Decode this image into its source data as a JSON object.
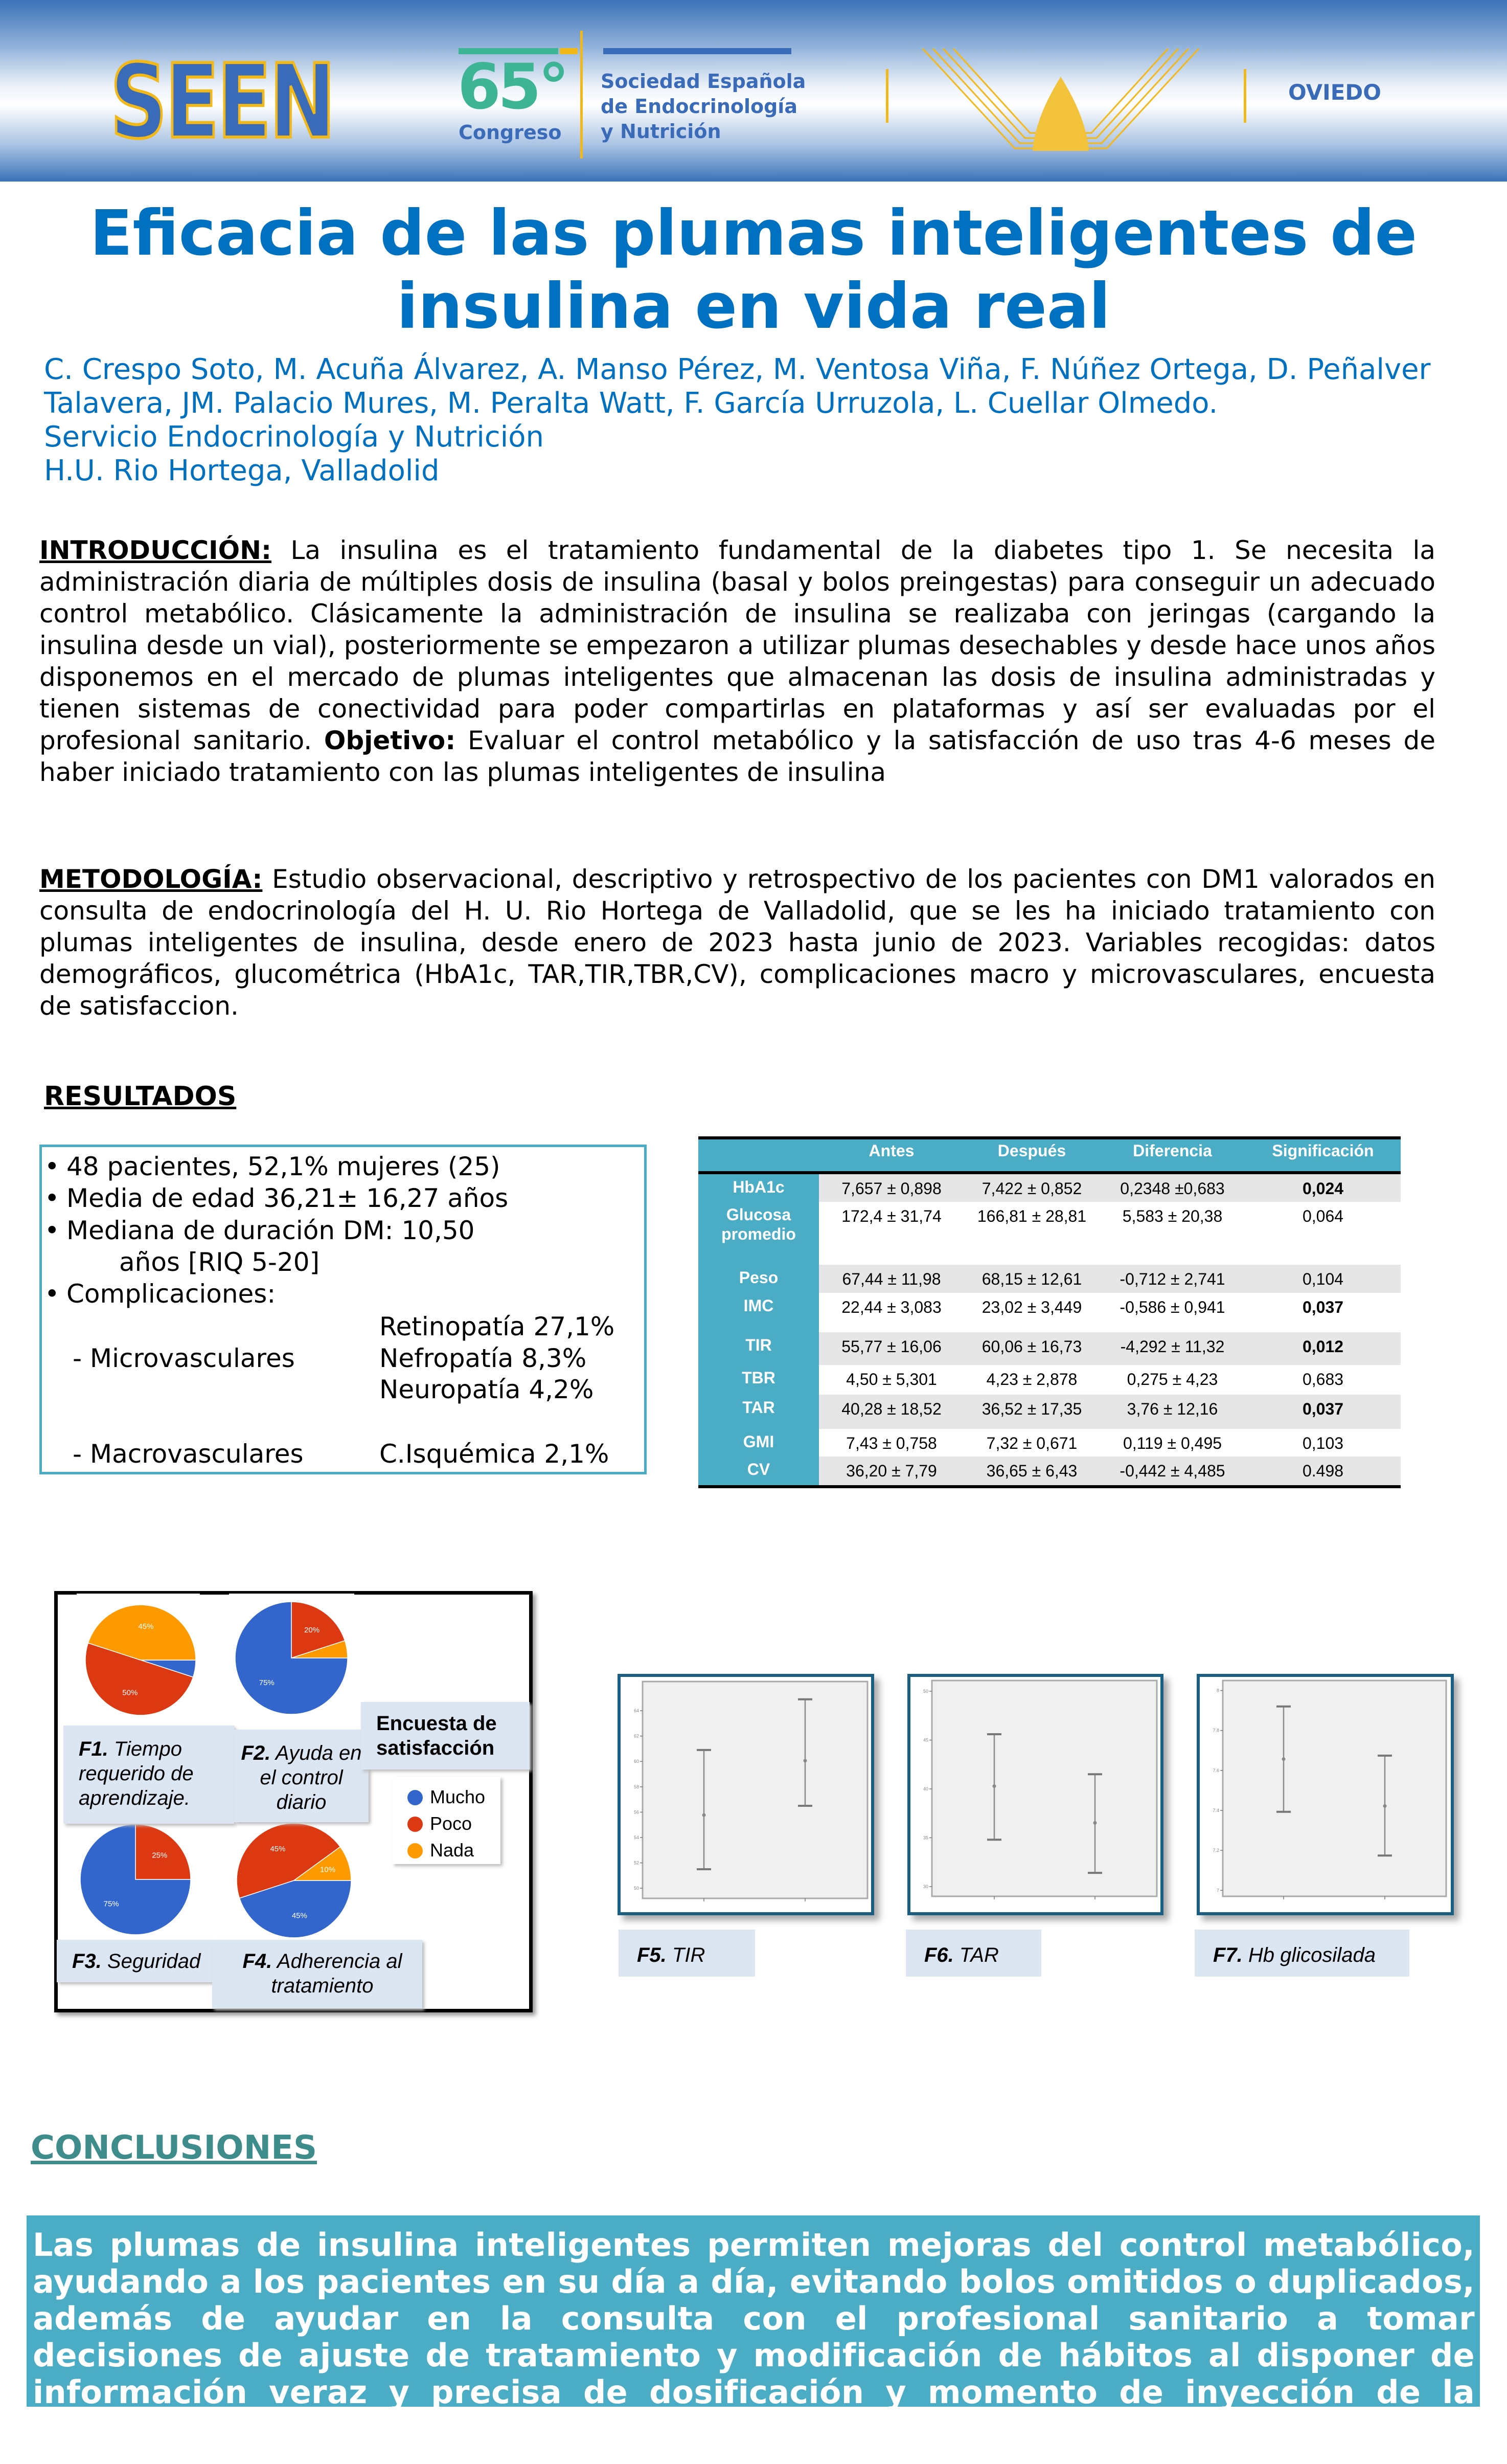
{
  "header": {
    "seen_logo": "SEEN",
    "congress_number": "65°",
    "congress_label": "Congreso",
    "society_lines": [
      "Sociedad Española",
      "de Endocrinología",
      "y Nutrición"
    ],
    "city": "OVIEDO",
    "colors": {
      "blue": "#3a6bb8",
      "green": "#3db594",
      "gold": "#f2b817"
    }
  },
  "title": {
    "line1": "Eficacia de las plumas inteligentes de",
    "line2": "insulina en vida real"
  },
  "authors": {
    "line1": "C. Crespo Soto, M. Acuña Álvarez, A. Manso Pérez, M. Ventosa Viña, F. Núñez Ortega, D. Peñalver",
    "line2": "Talavera, JM. Palacio Mures, M. Peralta Watt, F. García Urruzola, L. Cuellar Olmedo.",
    "department": "Servicio Endocrinología y Nutrición",
    "hospital": "H.U. Rio Hortega, Valladolid"
  },
  "introduccion": {
    "heading": "INTRODUCCIÓN:",
    "text1": " La insulina es el tratamiento fundamental de la diabetes tipo 1. Se necesita la administración diaria de múltiples dosis de insulina (basal y bolos preingestas) para conseguir un adecuado control metabólico. Clásicamente la administración de insulina se realizaba con jeringas (cargando la insulina desde un vial), posteriormente se empezaron a utilizar plumas desechables y desde hace unos años disponemos en el mercado de plumas inteligentes que almacenan las dosis de insulina administradas y tienen sistemas de conectividad para poder compartirlas en plataformas y así ser evaluadas por el profesional sanitario. ",
    "objetivo_label": "Objetivo:",
    "text2": " Evaluar el control metabólico y la satisfacción de uso tras 4-6 meses de haber iniciado tratamiento con las plumas inteligentes de insulina"
  },
  "metodologia": {
    "heading": "METODOLOGÍA:",
    "text": " Estudio observacional, descriptivo y retrospectivo de los pacientes con DM1 valorados en consulta de endocrinología del H. U. Rio Hortega de Valladolid, que se les ha iniciado tratamiento con plumas inteligentes de insulina,  desde enero de 2023 hasta  junio de 2023. Variables recogidas: datos demográficos, glucométrica (HbA1c, TAR,TIR,TBR,CV), complicaciones macro y microvasculares, encuesta de satisfaccion."
  },
  "resultados": {
    "heading": "RESULTADOS",
    "bullet": "•",
    "items": [
      "48 pacientes, 52,1% mujeres (25)",
      "Media de edad 36,21± 16,27 años",
      "Mediana de duración DM: 10,50",
      "años [RIQ 5-20]",
      "Complicaciones:"
    ],
    "micro_label": "- Microvasculares",
    "micro_values": [
      "Retinopatía 27,1%",
      "Nefropatía 8,3%",
      "Neuropatía 4,2%"
    ],
    "macro_label": "- Macrovasculares",
    "macro_value": "C.Isquémica 2,1%"
  },
  "table": {
    "columns": [
      "",
      "Antes",
      "Después",
      "Diferencia",
      "Significación"
    ],
    "rows": [
      {
        "label": "HbA1c",
        "antes": "7,657 ± 0,898",
        "despues": "7,422 ± 0,852",
        "diferencia": "0,2348 ±0,683",
        "significacion": "0,024",
        "significant": true
      },
      {
        "label": "Glucosa promedio",
        "antes": "172,4 ± 31,74",
        "despues": "166,81 ± 28,81",
        "diferencia": "5,583 ± 20,38",
        "significacion": "0,064",
        "significant": false
      },
      {
        "label": "Peso",
        "antes": "67,44 ± 11,98",
        "despues": "68,15 ± 12,61",
        "diferencia": "-0,712 ± 2,741",
        "significacion": "0,104",
        "significant": false
      },
      {
        "label": "IMC",
        "antes": "22,44 ± 3,083",
        "despues": "23,02 ± 3,449",
        "diferencia": "-0,586 ± 0,941",
        "significacion": "0,037",
        "significant": true
      },
      {
        "label": "TIR",
        "antes": "55,77 ± 16,06",
        "despues": "60,06 ± 16,73",
        "diferencia": "-4,292 ± 11,32",
        "significacion": "0,012",
        "significant": true
      },
      {
        "label": "TBR",
        "antes": "4,50 ± 5,301",
        "despues": "4,23 ± 2,878",
        "diferencia": "0,275 ± 4,23",
        "significacion": "0,683",
        "significant": false
      },
      {
        "label": "TAR",
        "antes": "40,28 ± 18,52",
        "despues": "36,52 ± 17,35",
        "diferencia": "3,76 ± 12,16",
        "significacion": "0,037",
        "significant": true
      },
      {
        "label": "GMI",
        "antes": "7,43 ± 0,758",
        "despues": "7,32 ± 0,671",
        "diferencia": "0,119 ± 0,495",
        "significacion": "0,103",
        "significant": false
      },
      {
        "label": "CV",
        "antes": "36,20 ± 7,79",
        "despues": "36,65 ± 6,43",
        "diferencia": "-0,442 ± 4,485",
        "significacion": "0.498",
        "significant": false
      }
    ],
    "header_color": "#4bacc6"
  },
  "survey": {
    "title": "Encuesta de satisfacción",
    "legend": [
      {
        "label": "Mucho",
        "color": "#3366cc"
      },
      {
        "label": "Poco",
        "color": "#dc3912"
      },
      {
        "label": "Nada",
        "color": "#ff9900"
      }
    ],
    "captions": [
      {
        "num": "F1.",
        "text": " Tiempo requerido de aprendizaje."
      },
      {
        "num": "F2.",
        "text": " Ayuda en el control diario"
      },
      {
        "num": "F3.",
        "text": " Seguridad"
      },
      {
        "num": "F4.",
        "text": " Adherencia al tratamiento"
      }
    ]
  },
  "chart_data": [
    {
      "type": "pie",
      "id": "F1",
      "slices": [
        {
          "category": "Mucho",
          "value": 5,
          "label": ""
        },
        {
          "category": "Poco",
          "value": 50,
          "label": "50%"
        },
        {
          "category": "Nada",
          "value": 45,
          "label": "45%"
        }
      ]
    },
    {
      "type": "pie",
      "id": "F2",
      "slices": [
        {
          "category": "Poco",
          "value": 20,
          "label": "20%"
        },
        {
          "category": "Nada",
          "value": 5,
          "label": ""
        },
        {
          "category": "Mucho",
          "value": 75,
          "label": "75%"
        }
      ]
    },
    {
      "type": "pie",
      "id": "F3",
      "slices": [
        {
          "category": "Poco",
          "value": 25,
          "label": "25%"
        },
        {
          "category": "Mucho",
          "value": 75,
          "label": "75%"
        }
      ]
    },
    {
      "type": "pie",
      "id": "F4",
      "slices": [
        {
          "category": "Mucho",
          "value": 45,
          "label": "45%"
        },
        {
          "category": "Poco",
          "value": 45,
          "label": "45%"
        },
        {
          "category": "Nada",
          "value": 10,
          "label": "10%"
        }
      ]
    },
    {
      "type": "errorbar",
      "id": "F5",
      "caption_num": "F5.",
      "caption": " TIR",
      "ylim": [
        49.2,
        66.3
      ],
      "yticks": [
        50,
        52,
        54,
        56,
        58,
        60,
        62,
        64
      ],
      "points": [
        {
          "mean": 55.77,
          "low": 51.5,
          "high": 60.9
        },
        {
          "mean": 60.06,
          "low": 56.5,
          "high": 64.9
        }
      ]
    },
    {
      "type": "errorbar",
      "id": "F6",
      "caption_num": "F6.",
      "caption": " TAR",
      "ylim": [
        29,
        51.1
      ],
      "yticks": [
        30,
        35,
        40,
        45,
        50
      ],
      "points": [
        {
          "mean": 40.28,
          "low": 34.8,
          "high": 45.6
        },
        {
          "mean": 36.52,
          "low": 31.4,
          "high": 41.5
        }
      ]
    },
    {
      "type": "errorbar",
      "id": "F7",
      "caption_num": "F7.",
      "caption": " Hb glicosilada",
      "ylim": [
        6.97,
        8.05
      ],
      "yticks": [
        7.0,
        7.2,
        7.4,
        7.6,
        7.8,
        8.0
      ],
      "points": [
        {
          "mean": 7.657,
          "low": 7.393,
          "high": 7.92
        },
        {
          "mean": 7.422,
          "low": 7.174,
          "high": 7.674
        }
      ]
    }
  ],
  "conclusiones": {
    "heading": "CONCLUSIONES",
    "text": "Las plumas de insulina inteligentes permiten mejoras del control metabólico, ayudando a los pacientes en su día a día, evitando bolos omitidos o duplicados, además de ayudar en la consulta con el profesional sanitario a tomar decisiones de ajuste de tratamiento y modificación de hábitos al disponer de información veraz y precisa de dosificación y momento de inyección de la insulina.",
    "box_color": "#4bacc6"
  }
}
